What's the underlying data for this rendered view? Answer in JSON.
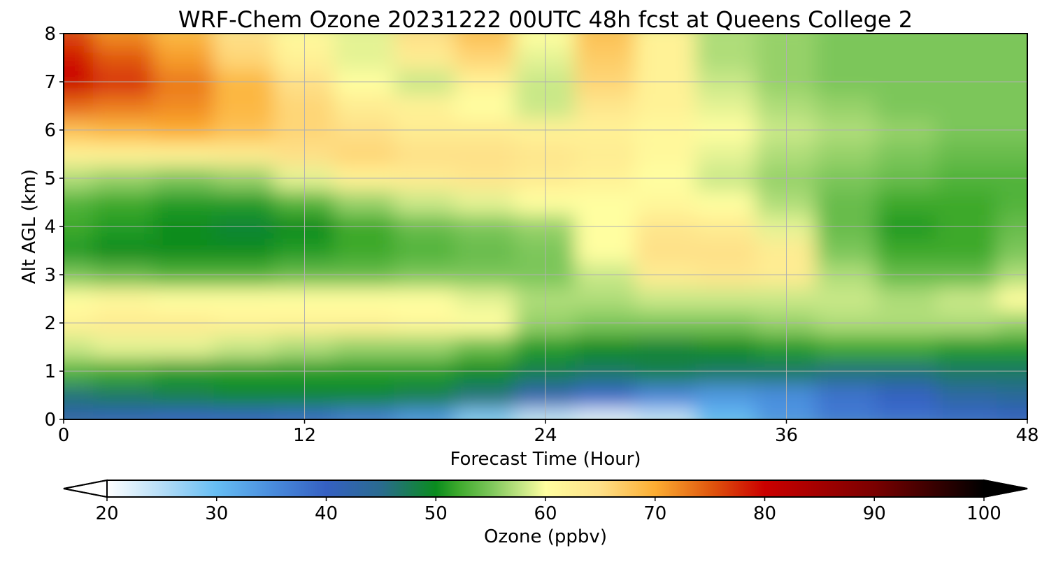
{
  "chart_data": {
    "type": "heatmap",
    "title": "WRF-Chem Ozone  20231222 00UTC 48h fcst at Queens College 2",
    "xlabel": "Forecast Time (Hour)",
    "ylabel": "Alt AGL (km)",
    "xlim": [
      0,
      48
    ],
    "ylim": [
      0,
      8
    ],
    "xticks": [
      0,
      12,
      24,
      36,
      48
    ],
    "yticks": [
      0,
      1,
      2,
      3,
      4,
      5,
      6,
      7,
      8
    ],
    "grid": true,
    "x": [
      0,
      3,
      6,
      9,
      12,
      15,
      18,
      21,
      24,
      27,
      30,
      33,
      36,
      39,
      42,
      45,
      48
    ],
    "y": [
      0,
      0.5,
      1,
      1.5,
      2,
      2.5,
      3,
      3.5,
      4,
      4.5,
      5,
      5.5,
      6,
      6.5,
      7,
      7.5,
      8
    ],
    "z": [
      [
        42,
        41,
        40,
        40,
        39,
        37,
        34,
        28,
        24,
        22,
        24,
        30,
        34,
        37,
        38,
        39,
        40
      ],
      [
        46,
        47,
        48,
        49,
        49,
        49,
        48,
        46,
        42,
        39,
        36,
        34,
        35,
        38,
        40,
        43,
        44
      ],
      [
        53,
        52,
        51,
        51,
        51,
        51,
        51,
        50,
        48,
        47,
        48,
        47,
        47,
        46,
        46,
        47,
        47
      ],
      [
        58,
        59,
        59,
        58,
        57,
        56,
        56,
        54,
        51,
        50,
        49,
        50,
        51,
        52,
        52,
        51,
        51
      ],
      [
        62,
        63,
        63,
        62,
        62,
        62,
        61,
        60,
        56,
        55,
        55,
        55,
        56,
        57,
        57,
        57,
        56
      ],
      [
        60,
        61,
        60,
        60,
        60,
        60,
        60,
        59,
        57,
        57,
        58,
        58,
        58,
        58,
        57,
        58,
        60
      ],
      [
        55,
        54,
        53,
        53,
        54,
        54,
        55,
        55,
        55,
        58,
        63,
        64,
        63,
        57,
        54,
        54,
        57
      ],
      [
        51,
        50,
        50,
        50,
        51,
        52,
        53,
        54,
        55,
        60,
        65,
        65,
        63,
        55,
        52,
        52,
        55
      ],
      [
        52,
        51,
        50,
        49,
        50,
        52,
        54,
        55,
        56,
        60,
        64,
        63,
        59,
        54,
        51,
        52,
        54
      ],
      [
        53,
        52,
        51,
        51,
        53,
        56,
        58,
        59,
        60,
        60,
        61,
        60,
        57,
        54,
        52,
        52,
        53
      ],
      [
        57,
        56,
        55,
        56,
        59,
        62,
        63,
        64,
        63,
        62,
        60,
        58,
        56,
        55,
        54,
        53,
        53
      ],
      [
        62,
        62,
        62,
        63,
        65,
        66,
        65,
        65,
        64,
        63,
        61,
        59,
        57,
        56,
        55,
        54,
        54
      ],
      [
        68,
        69,
        70,
        68,
        66,
        65,
        63,
        63,
        62,
        62,
        61,
        60,
        58,
        57,
        56,
        55,
        55
      ],
      [
        74,
        73,
        72,
        69,
        66,
        63,
        62,
        60,
        58,
        64,
        62,
        59,
        57,
        56,
        55,
        55,
        55
      ],
      [
        80,
        77,
        73,
        69,
        65,
        60,
        58,
        62,
        58,
        66,
        62,
        58,
        56,
        55,
        55,
        55,
        55
      ],
      [
        79,
        75,
        71,
        66,
        62,
        59,
        63,
        66,
        59,
        67,
        62,
        57,
        56,
        55,
        55,
        55,
        55
      ],
      [
        76,
        72,
        69,
        65,
        61,
        59,
        65,
        68,
        60,
        68,
        62,
        57,
        56,
        55,
        55,
        55,
        55
      ]
    ],
    "colorbar": {
      "label": "Ozone  (ppbv)",
      "min": 20,
      "max": 100,
      "ticks": [
        20,
        30,
        40,
        50,
        60,
        70,
        80,
        90,
        100
      ],
      "extend": "both",
      "stops": [
        [
          20,
          "#ffffff"
        ],
        [
          25,
          "#b5ddf7"
        ],
        [
          30,
          "#66bdf3"
        ],
        [
          35,
          "#4a8ddd"
        ],
        [
          40,
          "#3560c2"
        ],
        [
          45,
          "#2a6b8f"
        ],
        [
          50,
          "#0a8c1e"
        ],
        [
          52,
          "#3ca92c"
        ],
        [
          55,
          "#7cc65a"
        ],
        [
          58,
          "#c9e888"
        ],
        [
          60,
          "#fffea0"
        ],
        [
          65,
          "#fee088"
        ],
        [
          70,
          "#fcad32"
        ],
        [
          75,
          "#e0580e"
        ],
        [
          80,
          "#cb0000"
        ],
        [
          90,
          "#7a0000"
        ],
        [
          100,
          "#000000"
        ]
      ]
    }
  }
}
